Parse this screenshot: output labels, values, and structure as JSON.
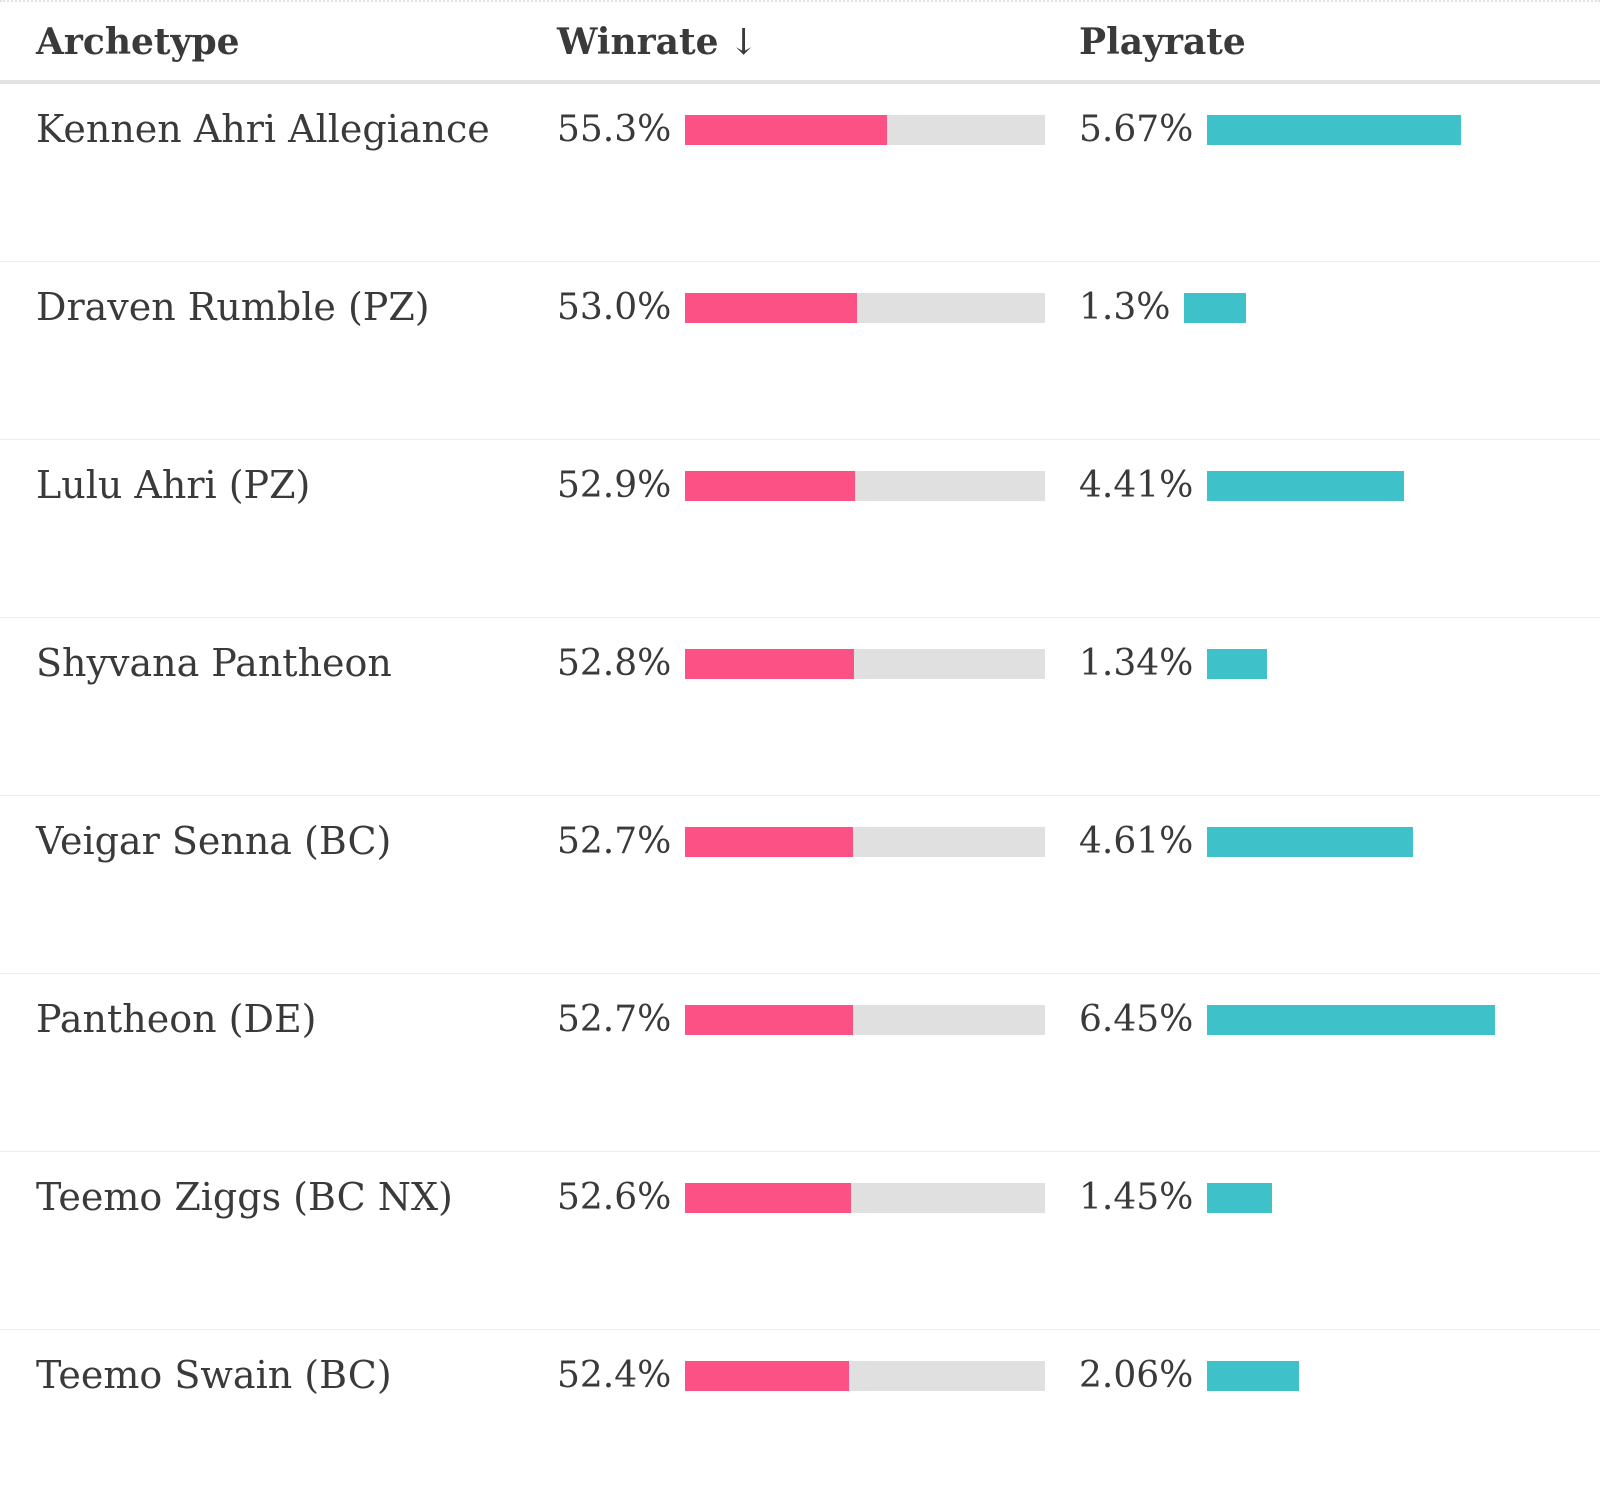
{
  "colors": {
    "winrate_bar": "#fc5185",
    "winrate_track": "#e0e0e0",
    "playrate_bar": "#3fc1c9",
    "text": "#3a3a3a"
  },
  "table": {
    "headers": {
      "archetype": "Archetype",
      "winrate": "Winrate",
      "winrate_sort_indicator": "↓",
      "playrate": "Playrate"
    },
    "rows": [
      {
        "name": "Kennen Ahri Allegiance",
        "winrate": "55.3%",
        "playrate": "5.67%"
      },
      {
        "name": "Draven Rumble (PZ)",
        "winrate": "53.0%",
        "playrate": "1.3%"
      },
      {
        "name": "Lulu Ahri (PZ)",
        "winrate": "52.9%",
        "playrate": "4.41%"
      },
      {
        "name": "Shyvana Pantheon",
        "winrate": "52.8%",
        "playrate": "1.34%"
      },
      {
        "name": "Veigar Senna (BC)",
        "winrate": "52.7%",
        "playrate": "4.61%"
      },
      {
        "name": "Pantheon (DE)",
        "winrate": "52.7%",
        "playrate": "6.45%"
      },
      {
        "name": "Teemo Ziggs (BC NX)",
        "winrate": "52.6%",
        "playrate": "1.45%"
      },
      {
        "name": "Teemo Swain (BC)",
        "winrate": "52.4%",
        "playrate": "2.06%"
      }
    ]
  }
}
